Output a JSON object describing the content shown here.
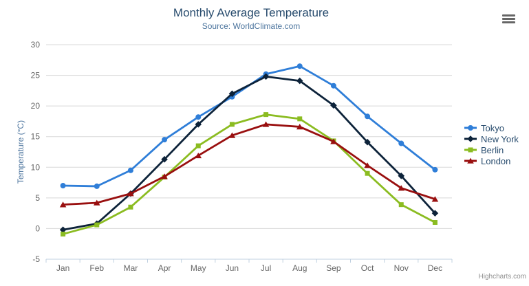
{
  "credits": "Highcharts.com",
  "menu": {
    "icon": "hamburger-icon"
  },
  "colors": {
    "title": "#274b6d",
    "subtitle": "#4d759e",
    "axis_labels": "#666666",
    "gridline": "#d8d8d8",
    "axis_line": "#c0d0e0",
    "legend_text": "#274b6d",
    "credits_text": "#909090"
  },
  "chart_data": {
    "type": "line",
    "title": "Monthly Average Temperature",
    "subtitle": "Source: WorldClimate.com",
    "xlabel": "",
    "ylabel": "Temperature (°C)",
    "categories": [
      "Jan",
      "Feb",
      "Mar",
      "Apr",
      "May",
      "Jun",
      "Jul",
      "Aug",
      "Sep",
      "Oct",
      "Nov",
      "Dec"
    ],
    "ylim": [
      -5,
      30
    ],
    "ytick_interval": 5,
    "grid": true,
    "legend_position": "right",
    "series": [
      {
        "name": "Tokyo",
        "symbol": "circle",
        "color": "#2f7ed8",
        "values": [
          7.0,
          6.9,
          9.5,
          14.5,
          18.2,
          21.5,
          25.2,
          26.5,
          23.3,
          18.3,
          13.9,
          9.6
        ]
      },
      {
        "name": "New York",
        "symbol": "diamond",
        "color": "#0d233a",
        "values": [
          -0.2,
          0.8,
          5.7,
          11.3,
          17.0,
          22.0,
          24.8,
          24.1,
          20.1,
          14.1,
          8.6,
          2.5
        ]
      },
      {
        "name": "Berlin",
        "symbol": "square",
        "color": "#8bbc21",
        "values": [
          -0.9,
          0.6,
          3.5,
          8.4,
          13.5,
          17.0,
          18.6,
          17.9,
          14.3,
          9.0,
          3.9,
          1.0
        ]
      },
      {
        "name": "London",
        "symbol": "triangle",
        "color": "#990f0f",
        "values": [
          3.9,
          4.2,
          5.7,
          8.5,
          11.9,
          15.2,
          17.0,
          16.6,
          14.2,
          10.3,
          6.6,
          4.8
        ]
      }
    ]
  }
}
